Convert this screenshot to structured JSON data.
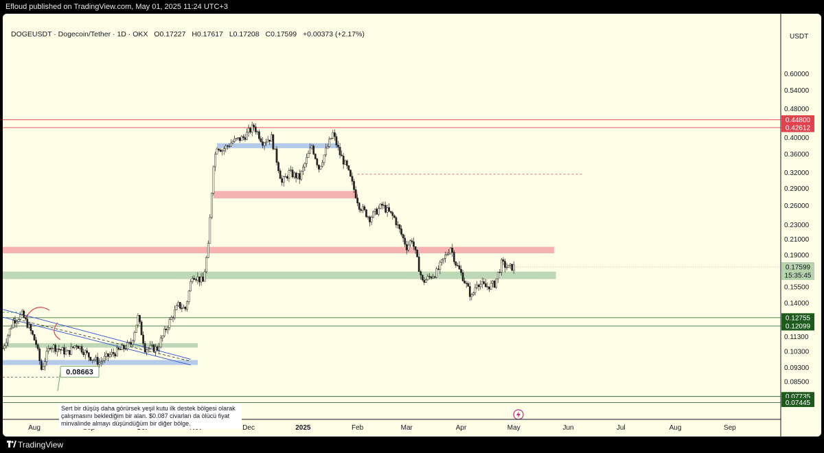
{
  "header": {
    "published_text": "Efloud published on TradingView.com, May 01, 2025 11:24 UTC+3"
  },
  "legend": {
    "symbol": "DOGEUSDT · Dogecoin/Tether · 1D · OKX",
    "open": "O0.17227",
    "high": "H0.17617",
    "low": "L0.17208",
    "close": "C0.17599",
    "change": "+0.00373 (+2.17%)"
  },
  "currency_label": "USDT",
  "footer": {
    "brand": "TradingView"
  },
  "annotation": {
    "price_label": "0.08663",
    "note": "Sert bir düşüş daha görürsek yeşil kutu ilk destek bölgesi olarak çalışmasını beklediğim bir alan. $0.087 civarları da ölücü fiyat minvalinde almayı düşündüğüm bir diğer bölge."
  },
  "chart_data": {
    "type": "candlestick",
    "title": "DOGEUSDT · Dogecoin/Tether · 1D · OKX",
    "y_scale": "log",
    "ylim": [
      0.0705,
      0.7
    ],
    "y_ticks": [
      "0.60000",
      "0.54000",
      "0.48000",
      "0.40000",
      "0.36000",
      "0.32000",
      "0.29000",
      "0.26000",
      "0.23000",
      "0.21000",
      "0.19000",
      "0.15500",
      "0.14000",
      "0.11300",
      "0.10300",
      "0.09300",
      "0.08500"
    ],
    "x_ticks": [
      {
        "label": "Aug",
        "date": "2024-08-01",
        "bold": false
      },
      {
        "label": "Sep",
        "date": "2024-09-01",
        "bold": false
      },
      {
        "label": "Oct",
        "date": "2024-10-01",
        "bold": false
      },
      {
        "label": "Nov",
        "date": "2024-11-01",
        "bold": false
      },
      {
        "label": "Dec",
        "date": "2024-12-01",
        "bold": false
      },
      {
        "label": "2025",
        "date": "2025-01-01",
        "bold": true
      },
      {
        "label": "Feb",
        "date": "2025-02-01",
        "bold": false
      },
      {
        "label": "Mar",
        "date": "2025-03-01",
        "bold": false
      },
      {
        "label": "Apr",
        "date": "2025-04-01",
        "bold": false
      },
      {
        "label": "May",
        "date": "2025-05-01",
        "bold": false
      },
      {
        "label": "Jun",
        "date": "2025-06-01",
        "bold": false
      },
      {
        "label": "Jul",
        "date": "2025-07-01",
        "bold": false
      },
      {
        "label": "Aug",
        "date": "2025-08-01",
        "bold": false
      },
      {
        "label": "Sep",
        "date": "2025-09-01",
        "bold": false
      }
    ],
    "x_range": [
      "2024-07-14",
      "2025-09-30"
    ],
    "last_bar_date": "2025-05-01",
    "series": [
      {
        "name": "DOGEUSDT",
        "waypoints": [
          [
            "2024-07-14",
            0.105
          ],
          [
            "2024-07-20",
            0.125
          ],
          [
            "2024-07-25",
            0.13
          ],
          [
            "2024-07-29",
            0.12
          ],
          [
            "2024-08-02",
            0.108
          ],
          [
            "2024-08-05",
            0.092
          ],
          [
            "2024-08-10",
            0.107
          ],
          [
            "2024-08-20",
            0.102
          ],
          [
            "2024-08-25",
            0.108
          ],
          [
            "2024-09-01",
            0.1
          ],
          [
            "2024-09-07",
            0.096
          ],
          [
            "2024-09-12",
            0.1
          ],
          [
            "2024-09-19",
            0.104
          ],
          [
            "2024-09-25",
            0.108
          ],
          [
            "2024-09-29",
            0.128
          ],
          [
            "2024-10-03",
            0.105
          ],
          [
            "2024-10-10",
            0.105
          ],
          [
            "2024-10-16",
            0.122
          ],
          [
            "2024-10-22",
            0.138
          ],
          [
            "2024-10-26",
            0.135
          ],
          [
            "2024-10-30",
            0.168
          ],
          [
            "2024-11-05",
            0.16
          ],
          [
            "2024-11-08",
            0.2
          ],
          [
            "2024-11-11",
            0.34
          ],
          [
            "2024-11-13",
            0.38
          ],
          [
            "2024-11-16",
            0.37
          ],
          [
            "2024-11-22",
            0.39
          ],
          [
            "2024-11-28",
            0.4
          ],
          [
            "2024-12-04",
            0.43
          ],
          [
            "2024-12-09",
            0.39
          ],
          [
            "2024-12-14",
            0.4
          ],
          [
            "2024-12-20",
            0.3
          ],
          [
            "2024-12-24",
            0.32
          ],
          [
            "2024-12-30",
            0.31
          ],
          [
            "2025-01-06",
            0.38
          ],
          [
            "2025-01-10",
            0.33
          ],
          [
            "2025-01-18",
            0.41
          ],
          [
            "2025-01-22",
            0.36
          ],
          [
            "2025-01-26",
            0.33
          ],
          [
            "2025-02-02",
            0.26
          ],
          [
            "2025-02-08",
            0.24
          ],
          [
            "2025-02-15",
            0.26
          ],
          [
            "2025-02-22",
            0.24
          ],
          [
            "2025-03-01",
            0.2
          ],
          [
            "2025-03-04",
            0.21
          ],
          [
            "2025-03-10",
            0.16
          ],
          [
            "2025-03-18",
            0.17
          ],
          [
            "2025-03-26",
            0.2
          ],
          [
            "2025-03-29",
            0.18
          ],
          [
            "2025-04-02",
            0.165
          ],
          [
            "2025-04-07",
            0.145
          ],
          [
            "2025-04-10",
            0.16
          ],
          [
            "2025-04-15",
            0.155
          ],
          [
            "2025-04-20",
            0.158
          ],
          [
            "2025-04-24",
            0.18
          ],
          [
            "2025-04-28",
            0.175
          ],
          [
            "2025-05-01",
            0.176
          ]
        ]
      }
    ],
    "zones": [
      {
        "color": "#f4aaaa",
        "from": "2024-11-11",
        "to": "2025-02-01",
        "y0": 0.272,
        "y1": 0.285
      },
      {
        "color": "#f4aaaa",
        "from": "2024-07-14",
        "to": "2025-05-24",
        "y0": 0.192,
        "y1": 0.2
      },
      {
        "color": "#b7d3ae",
        "from": "2024-07-14",
        "to": "2025-05-25",
        "y0": 0.163,
        "y1": 0.171
      },
      {
        "color": "#b7d3ae",
        "from": "2024-07-14",
        "to": "2024-11-02",
        "y0": 0.1055,
        "y1": 0.1085
      },
      {
        "color": "#adc4e8",
        "from": "2024-07-14",
        "to": "2024-11-02",
        "y0": 0.0945,
        "y1": 0.0975
      },
      {
        "color": "#adc4e8",
        "from": "2024-11-13",
        "to": "2025-01-21",
        "y0": 0.374,
        "y1": 0.386
      }
    ],
    "levels": [
      {
        "value": 0.448,
        "label": "0.44800",
        "color": "#e0424e",
        "style": "solid"
      },
      {
        "value": 0.42612,
        "label": "0.42612",
        "color": "#e0424e",
        "style": "solid"
      },
      {
        "value": 0.12755,
        "label": "0.12755",
        "color": "#1e5a1e",
        "style": "solid"
      },
      {
        "value": 0.12099,
        "label": "0.12099",
        "color": "#1e5a1e",
        "style": "solid"
      },
      {
        "value": 0.07735,
        "label": "0.07735",
        "color": "#1e5a1e",
        "style": "solid"
      },
      {
        "value": 0.07445,
        "label": "0.07445",
        "color": "#1e5a1e",
        "style": "solid"
      }
    ],
    "dashed_levels": [
      {
        "value": 0.317,
        "from": "2025-02-01",
        "to": "2025-06-10",
        "color": "#e0424e"
      },
      {
        "value": 0.132,
        "from": "2024-07-14",
        "to": "2024-07-28",
        "color": "#1e7d1e"
      },
      {
        "value": 0.0875,
        "from": "2024-07-14",
        "to": "2024-08-25",
        "color": "#555555"
      }
    ],
    "channel": {
      "color": "#3a5fd8",
      "upper": [
        [
          "2024-07-14",
          0.1345
        ],
        [
          "2024-10-29",
          0.098
        ]
      ],
      "lower": [
        [
          "2024-07-14",
          0.128
        ],
        [
          "2024-10-29",
          0.0945
        ]
      ],
      "dashed_mid": [
        [
          "2024-07-20",
          0.127
        ],
        [
          "2024-10-28",
          0.097
        ]
      ]
    },
    "current_price": {
      "value": 0.17599,
      "label": "0.17599",
      "countdown": "15:35:45"
    }
  }
}
